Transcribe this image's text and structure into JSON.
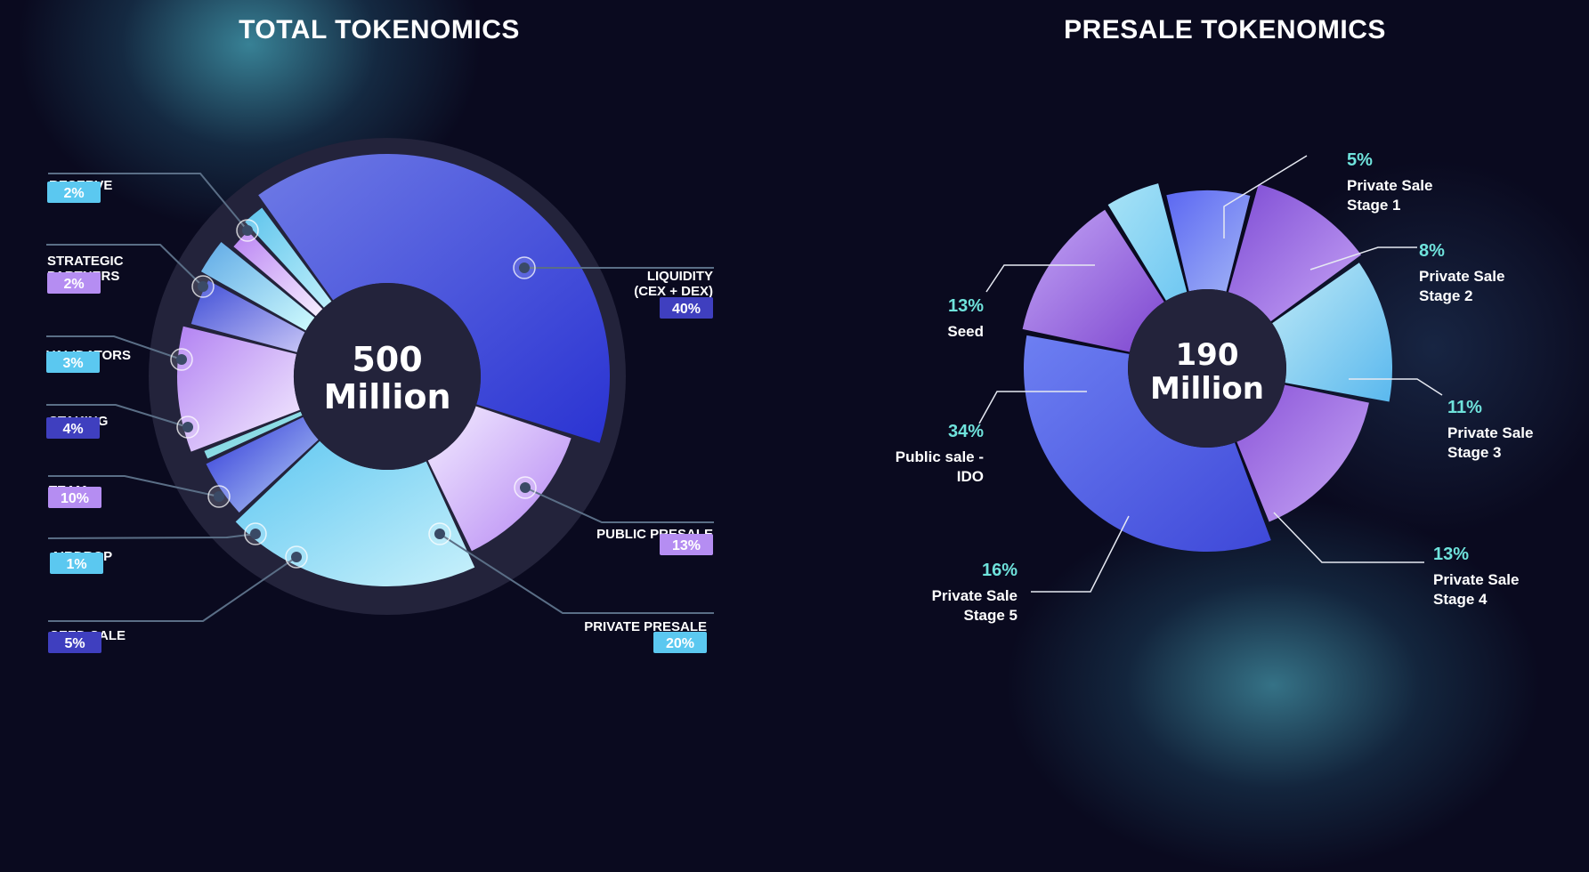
{
  "colors": {
    "background": "#0a0a1f",
    "badge_cyan": "#5bc8f0",
    "badge_purple": "#b58df2",
    "badge_indigo": "#3f3fbf",
    "accent_teal": "#6fe3dc",
    "connector": "#5a6e86"
  },
  "chart_data": [
    {
      "type": "pie",
      "title": "TOTAL TOKENOMICS",
      "center_text": [
        "500",
        "Million"
      ],
      "slices": [
        {
          "label": "LIQUIDITY (CEX + DEX)",
          "lines": [
            "LIQUIDITY",
            "(CEX + DEX)"
          ],
          "value": 40,
          "display": "40%",
          "badge": "indigo"
        },
        {
          "label": "PUBLIC PRESALE",
          "lines": [
            "PUBLIC PRESALE"
          ],
          "value": 13,
          "display": "13%",
          "badge": "purple"
        },
        {
          "label": "PRIVATE PRESALE",
          "lines": [
            "PRIVATE PRESALE"
          ],
          "value": 20,
          "display": "20%",
          "badge": "cyan"
        },
        {
          "label": "SEED SALE",
          "lines": [
            "SEED SALE"
          ],
          "value": 5,
          "display": "5%",
          "badge": "indigo"
        },
        {
          "label": "AIRDROP",
          "lines": [
            "AIRDROP"
          ],
          "value": 1,
          "display": "1%",
          "badge": "cyan"
        },
        {
          "label": "TEAM",
          "lines": [
            "TEAM"
          ],
          "value": 10,
          "display": "10%",
          "badge": "purple"
        },
        {
          "label": "STAKING",
          "lines": [
            "STAKING"
          ],
          "value": 4,
          "display": "4%",
          "badge": "indigo"
        },
        {
          "label": "VALIDATORS",
          "lines": [
            "VALIDATORS"
          ],
          "value": 3,
          "display": "3%",
          "badge": "cyan"
        },
        {
          "label": "STRATEGIC PARTNERS",
          "lines": [
            "STRATEGIC",
            "PARTNERS"
          ],
          "value": 2,
          "display": "2%",
          "badge": "purple"
        },
        {
          "label": "RESERVE",
          "lines": [
            "RESERVE"
          ],
          "value": 2,
          "display": "2%",
          "badge": "cyan"
        }
      ]
    },
    {
      "type": "pie",
      "title": "PRESALE TOKENOMICS",
      "center_text": [
        "190",
        "Million"
      ],
      "slices": [
        {
          "label": "Private Sale Stage 1",
          "lines": [
            "Private Sale",
            "Stage 1"
          ],
          "value": 5,
          "display": "5%"
        },
        {
          "label": "Private Sale Stage 2",
          "lines": [
            "Private Sale",
            "Stage 2"
          ],
          "value": 8,
          "display": "8%"
        },
        {
          "label": "Private Sale Stage 3",
          "lines": [
            "Private Sale",
            "Stage 3"
          ],
          "value": 11,
          "display": "11%"
        },
        {
          "label": "Private Sale Stage 4",
          "lines": [
            "Private Sale",
            "Stage 4"
          ],
          "value": 13,
          "display": "13%"
        },
        {
          "label": "Private Sale Stage 5",
          "lines": [
            "Private Sale",
            "Stage 5"
          ],
          "value": 16,
          "display": "16%"
        },
        {
          "label": "Public sale - IDO",
          "lines": [
            "Public sale -",
            "IDO"
          ],
          "value": 34,
          "display": "34%"
        },
        {
          "label": "Seed",
          "lines": [
            "Seed"
          ],
          "value": 13,
          "display": "13%"
        }
      ]
    }
  ]
}
